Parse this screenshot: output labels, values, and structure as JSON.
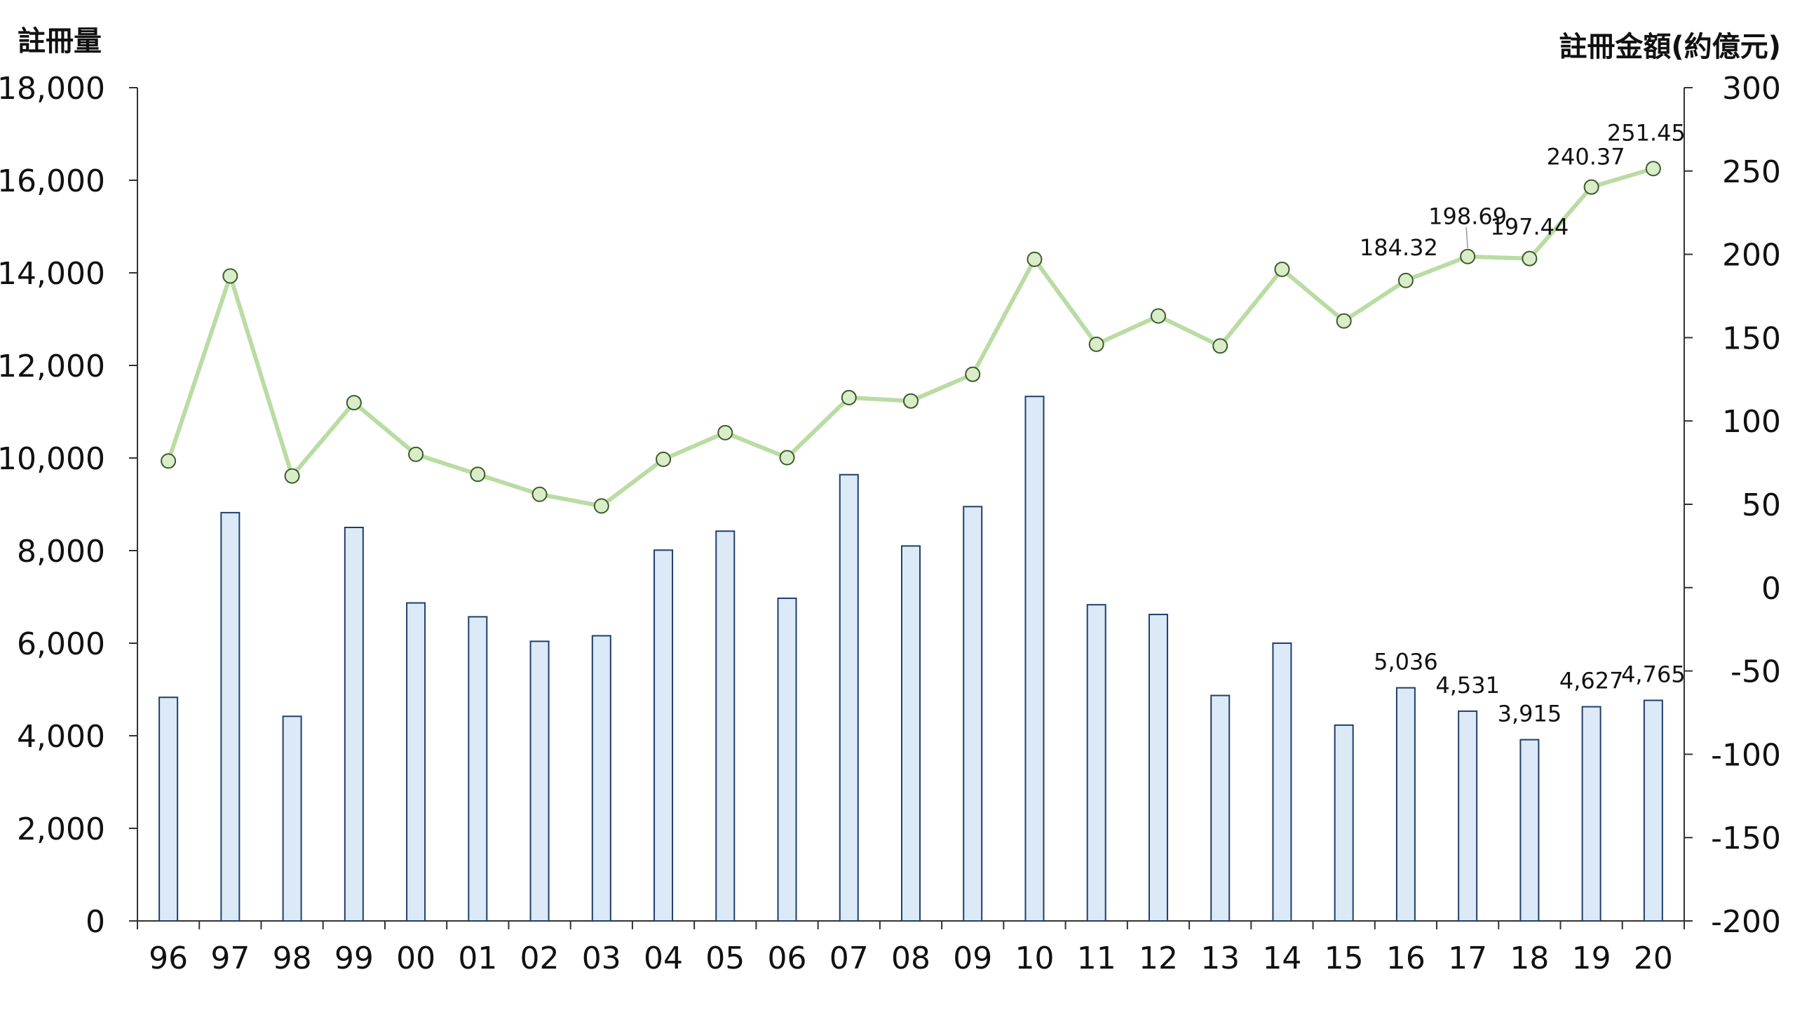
{
  "chart_data": {
    "type": "bar",
    "title": "",
    "y_left_label": "註冊量",
    "y_right_label": "註冊金額(約億元)",
    "ylim_left": [
      0,
      18000
    ],
    "ylim_right": [
      -200,
      300
    ],
    "left_ticks": [
      "0",
      "2,000",
      "4,000",
      "6,000",
      "8,000",
      "10,000",
      "12,000",
      "14,000",
      "16,000",
      "18,000"
    ],
    "right_ticks": [
      "-200",
      "-150",
      "-100",
      "-50",
      "0",
      "50",
      "100",
      "150",
      "200",
      "250",
      "300"
    ],
    "categories": [
      "96",
      "97",
      "98",
      "99",
      "00",
      "01",
      "02",
      "03",
      "04",
      "05",
      "06",
      "07",
      "08",
      "09",
      "10",
      "11",
      "12",
      "13",
      "14",
      "15",
      "16",
      "17",
      "18",
      "19",
      "20"
    ],
    "series": [
      {
        "kind": "bar",
        "axis": "left",
        "color": "#dce9f6",
        "edge_color": "#1f3f6b",
        "values": [
          4830,
          8820,
          4420,
          8500,
          6870,
          6570,
          6040,
          6160,
          8010,
          8420,
          6970,
          9640,
          8100,
          8950,
          11330,
          6830,
          6620,
          4870,
          6000,
          4230,
          5036,
          4531,
          3915,
          4627,
          4765
        ],
        "labels": [
          null,
          null,
          null,
          null,
          null,
          null,
          null,
          null,
          null,
          null,
          null,
          null,
          null,
          null,
          null,
          null,
          null,
          null,
          null,
          null,
          "5,036",
          "4,531",
          "3,915",
          "4,627",
          "4,765"
        ]
      },
      {
        "kind": "line",
        "axis": "right",
        "color": "#b9dca3",
        "marker_fill": "#d9edc9",
        "marker_edge": "#3d5a2a",
        "values": [
          76,
          187,
          67,
          111,
          80,
          68,
          56,
          49,
          77,
          93,
          78,
          114,
          112,
          128,
          197,
          146,
          163,
          145,
          191,
          160,
          184.32,
          198.69,
          197.44,
          240.37,
          251.45
        ],
        "labels": [
          null,
          null,
          null,
          null,
          null,
          null,
          null,
          null,
          null,
          null,
          null,
          null,
          null,
          null,
          null,
          null,
          null,
          null,
          null,
          null,
          "184.32",
          "198.69",
          "197.44",
          "240.37",
          "251.45"
        ]
      }
    ],
    "grid": false,
    "legend": "none"
  }
}
